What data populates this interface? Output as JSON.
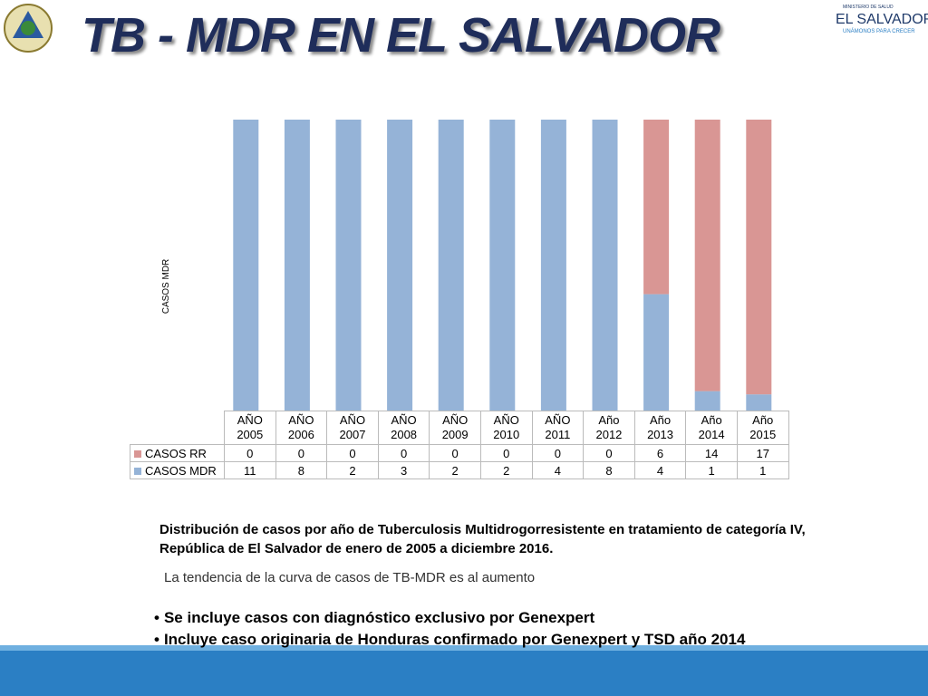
{
  "header": {
    "title": "TB - MDR EN EL SALVADOR",
    "logo_ministry": "MINISTERIO DE SALUD",
    "logo_country": "EL SALVADOR",
    "logo_slogan": "UNÁMONOS PARA CRECER"
  },
  "chart_data": {
    "type": "bar",
    "stacking": "percent",
    "y_label": "CASOS MDR",
    "categories": [
      "AÑO 2005",
      "AÑO 2006",
      "AÑO 2007",
      "AÑO 2008",
      "AÑO 2009",
      "AÑO 2010",
      "AÑO 2011",
      "Año 2012",
      "Año 2013",
      "Año 2014",
      "Año 2015"
    ],
    "series": [
      {
        "name": "CASOS RR",
        "color": "#d99694",
        "values": [
          0,
          0,
          0,
          0,
          0,
          0,
          0,
          0,
          6,
          14,
          17
        ]
      },
      {
        "name": "CASOS MDR",
        "color": "#95b3d7",
        "values": [
          11,
          8,
          2,
          3,
          2,
          2,
          4,
          8,
          4,
          1,
          1
        ]
      }
    ]
  },
  "caption": "Distribución de casos por año de Tuberculosis Multidrogorresistente en tratamiento de categoría IV,  República de El Salvador de enero de 2005 a diciembre 2016.",
  "note": "La tendencia de la curva de casos de TB-MDR es al aumento",
  "bullets": [
    "Se incluye casos con diagnóstico exclusivo por Genexpert",
    "Incluye caso originaria de Honduras confirmado por Genexpert y TSD año 2014"
  ]
}
